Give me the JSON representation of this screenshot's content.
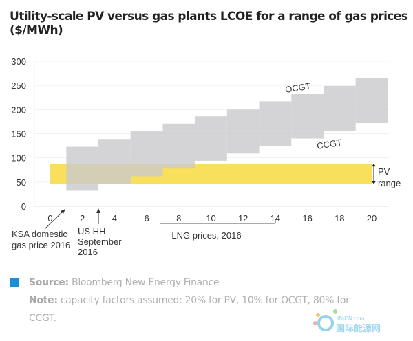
{
  "chart_data": {
    "type": "range-bar",
    "title": "Utility-scale PV versus gas plants LCOE for a range of gas prices",
    "subtitle": "($/MWh)",
    "ylim": [
      0,
      300
    ],
    "xlim": [
      -1,
      21
    ],
    "y_ticks": [
      "0",
      "50",
      "100",
      "150",
      "200",
      "250",
      "300"
    ],
    "x_ticks": [
      "0",
      "2",
      "4",
      "6",
      "8",
      "10",
      "12",
      "14",
      "16",
      "18",
      "20"
    ],
    "grid": true,
    "gas_band": {
      "upper_label": "OCGT",
      "lower_label": "CCGT",
      "blocks": [
        {
          "x_from": 1,
          "x_to": 3,
          "low": 32,
          "high": 123
        },
        {
          "x_from": 3,
          "x_to": 5,
          "low": 47,
          "high": 139
        },
        {
          "x_from": 5,
          "x_to": 7,
          "low": 62,
          "high": 155
        },
        {
          "x_from": 7,
          "x_to": 9,
          "low": 78,
          "high": 171
        },
        {
          "x_from": 9,
          "x_to": 11,
          "low": 94,
          "high": 186
        },
        {
          "x_from": 11,
          "x_to": 13,
          "low": 109,
          "high": 200
        },
        {
          "x_from": 13,
          "x_to": 15,
          "low": 125,
          "high": 217
        },
        {
          "x_from": 15,
          "x_to": 17,
          "low": 140,
          "high": 233
        },
        {
          "x_from": 17,
          "x_to": 19,
          "low": 156,
          "high": 249
        },
        {
          "x_from": 19,
          "x_to": 21,
          "low": 172,
          "high": 265
        }
      ],
      "color": "#d3d3d6"
    },
    "pv_range": {
      "label_1": "PV",
      "label_2": "range",
      "x_from": 0,
      "x_to": 20,
      "low": 46,
      "high": 88,
      "color": "#f8df5c"
    },
    "annotations": {
      "ksa": [
        "KSA domestic",
        "gas price 2016"
      ],
      "us_hh": [
        "US HH",
        "September",
        "2016"
      ],
      "lng": "LNG prices, 2016"
    }
  },
  "footer": {
    "source_label": "Source:",
    "source_text": " Bloomberg New Energy Finance",
    "note_label": "Note:",
    "note_text": " capacity factors assumed: 20% for PV, 10% for OCGT, 80% for",
    "note_text_2": "CCGT.",
    "accent_color": "#1a8fd6"
  },
  "watermark": {
    "text_1": "IN-EN.com",
    "text_2": "国际能源网"
  }
}
